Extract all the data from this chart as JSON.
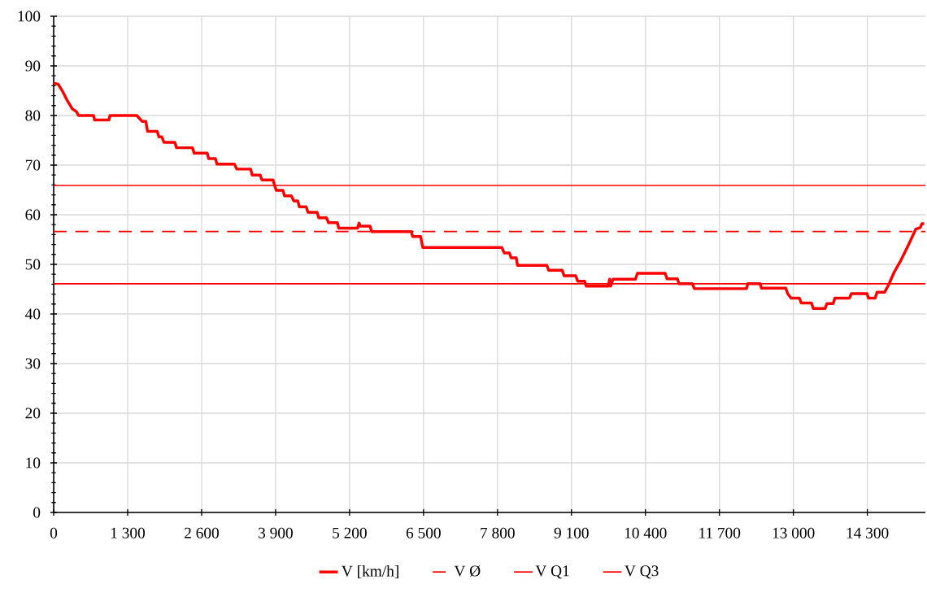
{
  "chart_data": {
    "type": "line",
    "xlim": [
      0,
      15320
    ],
    "ylim": [
      0,
      100
    ],
    "xticks": [
      0,
      {
        "value": 1300,
        "label": "1 300"
      },
      {
        "value": 2600,
        "label": "2 600"
      },
      {
        "value": 3900,
        "label": "3 900"
      },
      {
        "value": 5200,
        "label": "5 200"
      },
      {
        "value": 6500,
        "label": "6 500"
      },
      {
        "value": 7800,
        "label": "7 800"
      },
      {
        "value": 9100,
        "label": "9 100"
      },
      {
        "value": 10400,
        "label": "10 400"
      },
      {
        "value": 11700,
        "label": "11 700"
      },
      {
        "value": 13000,
        "label": "13 000"
      },
      {
        "value": 14300,
        "label": "14 300"
      }
    ],
    "yticks": [
      0,
      10,
      20,
      30,
      40,
      50,
      60,
      70,
      80,
      90,
      100
    ],
    "grid": true,
    "legend": "bottom",
    "marker": "none",
    "series": [
      {
        "name": "V [km/h]",
        "color": "#ff0000",
        "line_style": "solid",
        "x": [
          0,
          80,
          160,
          240,
          330,
          400,
          438,
          700,
          720,
          971,
          990,
          1462,
          1557,
          1620,
          1650,
          1820,
          1850,
          1900,
          1938,
          2129,
          2160,
          2438,
          2470,
          2700,
          2724,
          2843,
          2870,
          3176,
          3220,
          3462,
          3490,
          3629,
          3660,
          3857,
          3880,
          3914,
          4030,
          4057,
          4176,
          4220,
          4290,
          4319,
          4438,
          4470,
          4629,
          4660,
          4795,
          4830,
          4986,
          5010,
          5340,
          5367,
          5390,
          5560,
          5590,
          6286,
          6310,
          6450,
          6486,
          7876,
          7920,
          8010,
          8040,
          8130,
          8152,
          8667,
          8700,
          8938,
          8970,
          9176,
          9210,
          9333,
          9360,
          9748,
          9770,
          9790,
          9830,
          10224,
          10260,
          10748,
          10780,
          10962,
          10990,
          11224,
          11260,
          12176,
          12200,
          12414,
          12440,
          12867,
          12900,
          12960,
          13105,
          13140,
          13319,
          13350,
          13557,
          13590,
          13700,
          13730,
          13986,
          14020,
          14295,
          14320,
          14438,
          14470,
          14605,
          14676,
          14771,
          14890,
          15010,
          15152,
          15230,
          15260,
          15300
        ],
        "values": [
          86.5,
          86.3,
          84.8,
          83.0,
          81.3,
          80.8,
          80.0,
          80.0,
          79.1,
          79.1,
          80.0,
          80.0,
          78.8,
          78.8,
          76.8,
          76.8,
          75.7,
          75.7,
          74.6,
          74.6,
          73.5,
          73.5,
          72.4,
          72.4,
          71.3,
          71.3,
          70.2,
          70.2,
          69.2,
          69.2,
          68.0,
          68.0,
          67.0,
          67.0,
          66.0,
          64.9,
          64.9,
          63.8,
          63.8,
          62.8,
          62.8,
          61.6,
          61.6,
          60.5,
          60.5,
          59.4,
          59.4,
          58.4,
          58.4,
          57.3,
          57.3,
          58.3,
          57.7,
          57.7,
          56.6,
          56.6,
          55.6,
          55.6,
          53.4,
          53.4,
          52.3,
          52.3,
          51.3,
          51.3,
          49.8,
          49.8,
          48.8,
          48.8,
          47.7,
          47.7,
          46.6,
          46.6,
          45.6,
          45.6,
          47.0,
          45.6,
          47.0,
          47.0,
          48.2,
          48.2,
          47.1,
          47.1,
          46.1,
          46.1,
          45.1,
          45.1,
          46.1,
          46.1,
          45.2,
          45.2,
          44.1,
          43.2,
          43.2,
          42.2,
          42.2,
          41.1,
          41.1,
          42.1,
          42.1,
          43.2,
          43.2,
          44.1,
          44.1,
          43.2,
          43.2,
          44.4,
          44.4,
          45.9,
          48.4,
          50.8,
          53.6,
          57.1,
          57.4,
          58.2,
          58.2
        ]
      },
      {
        "name": "V Ø",
        "color": "#ff0000",
        "line_style": "dashed",
        "x": [
          0,
          15320
        ],
        "values": [
          56.6,
          56.6
        ]
      },
      {
        "name": "V Q1",
        "color": "#ff0000",
        "line_style": "solid",
        "x": [
          0,
          15320
        ],
        "values": [
          46.1,
          46.1
        ]
      },
      {
        "name": "V Q3",
        "color": "#ff0000",
        "line_style": "solid",
        "x": [
          0,
          15320
        ],
        "values": [
          65.9,
          65.9
        ]
      }
    ]
  }
}
